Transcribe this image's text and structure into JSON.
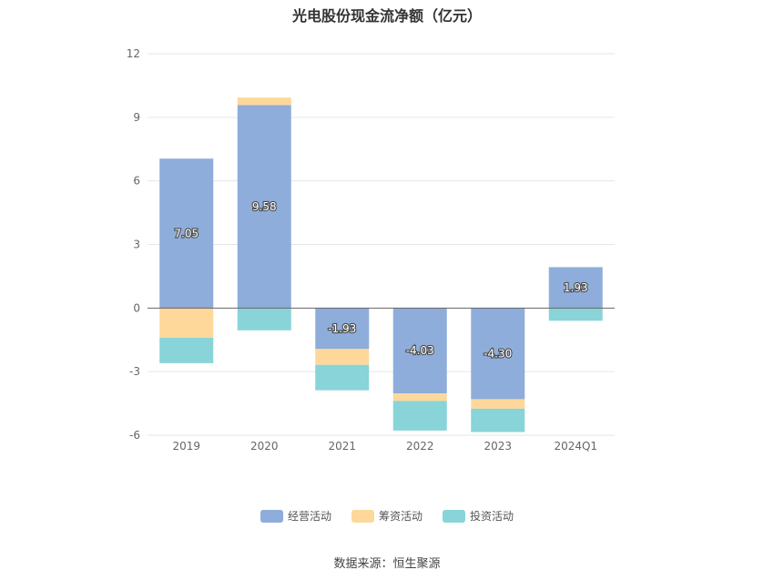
{
  "chart_data": {
    "type": "bar",
    "stacked": true,
    "title": "光电股份现金流净额（亿元）",
    "categories": [
      "2019",
      "2020",
      "2021",
      "2022",
      "2023",
      "2024Q1"
    ],
    "series": [
      {
        "name": "经营活动",
        "color": "#8EADDA",
        "values": [
          7.05,
          9.58,
          -1.93,
          -4.03,
          -4.3,
          1.93
        ],
        "labels": [
          "7.05",
          "9.58",
          "-1.93",
          "-4.03",
          "-4.30",
          "1.93"
        ]
      },
      {
        "name": "筹资活动",
        "color": "#FDD89A",
        "values": [
          -1.4,
          0.35,
          -0.75,
          -0.35,
          -0.45,
          0.0
        ]
      },
      {
        "name": "投资活动",
        "color": "#88D4D8",
        "values": [
          -1.2,
          -1.05,
          -1.2,
          -1.4,
          -1.1,
          -0.6
        ]
      }
    ],
    "yticks": [
      "12",
      "9",
      "6",
      "3",
      "0",
      "-3",
      "-6"
    ],
    "ylim": [
      -6,
      12
    ],
    "grid": true,
    "legend_position": "bottom"
  },
  "source": "数据来源：恒生聚源"
}
